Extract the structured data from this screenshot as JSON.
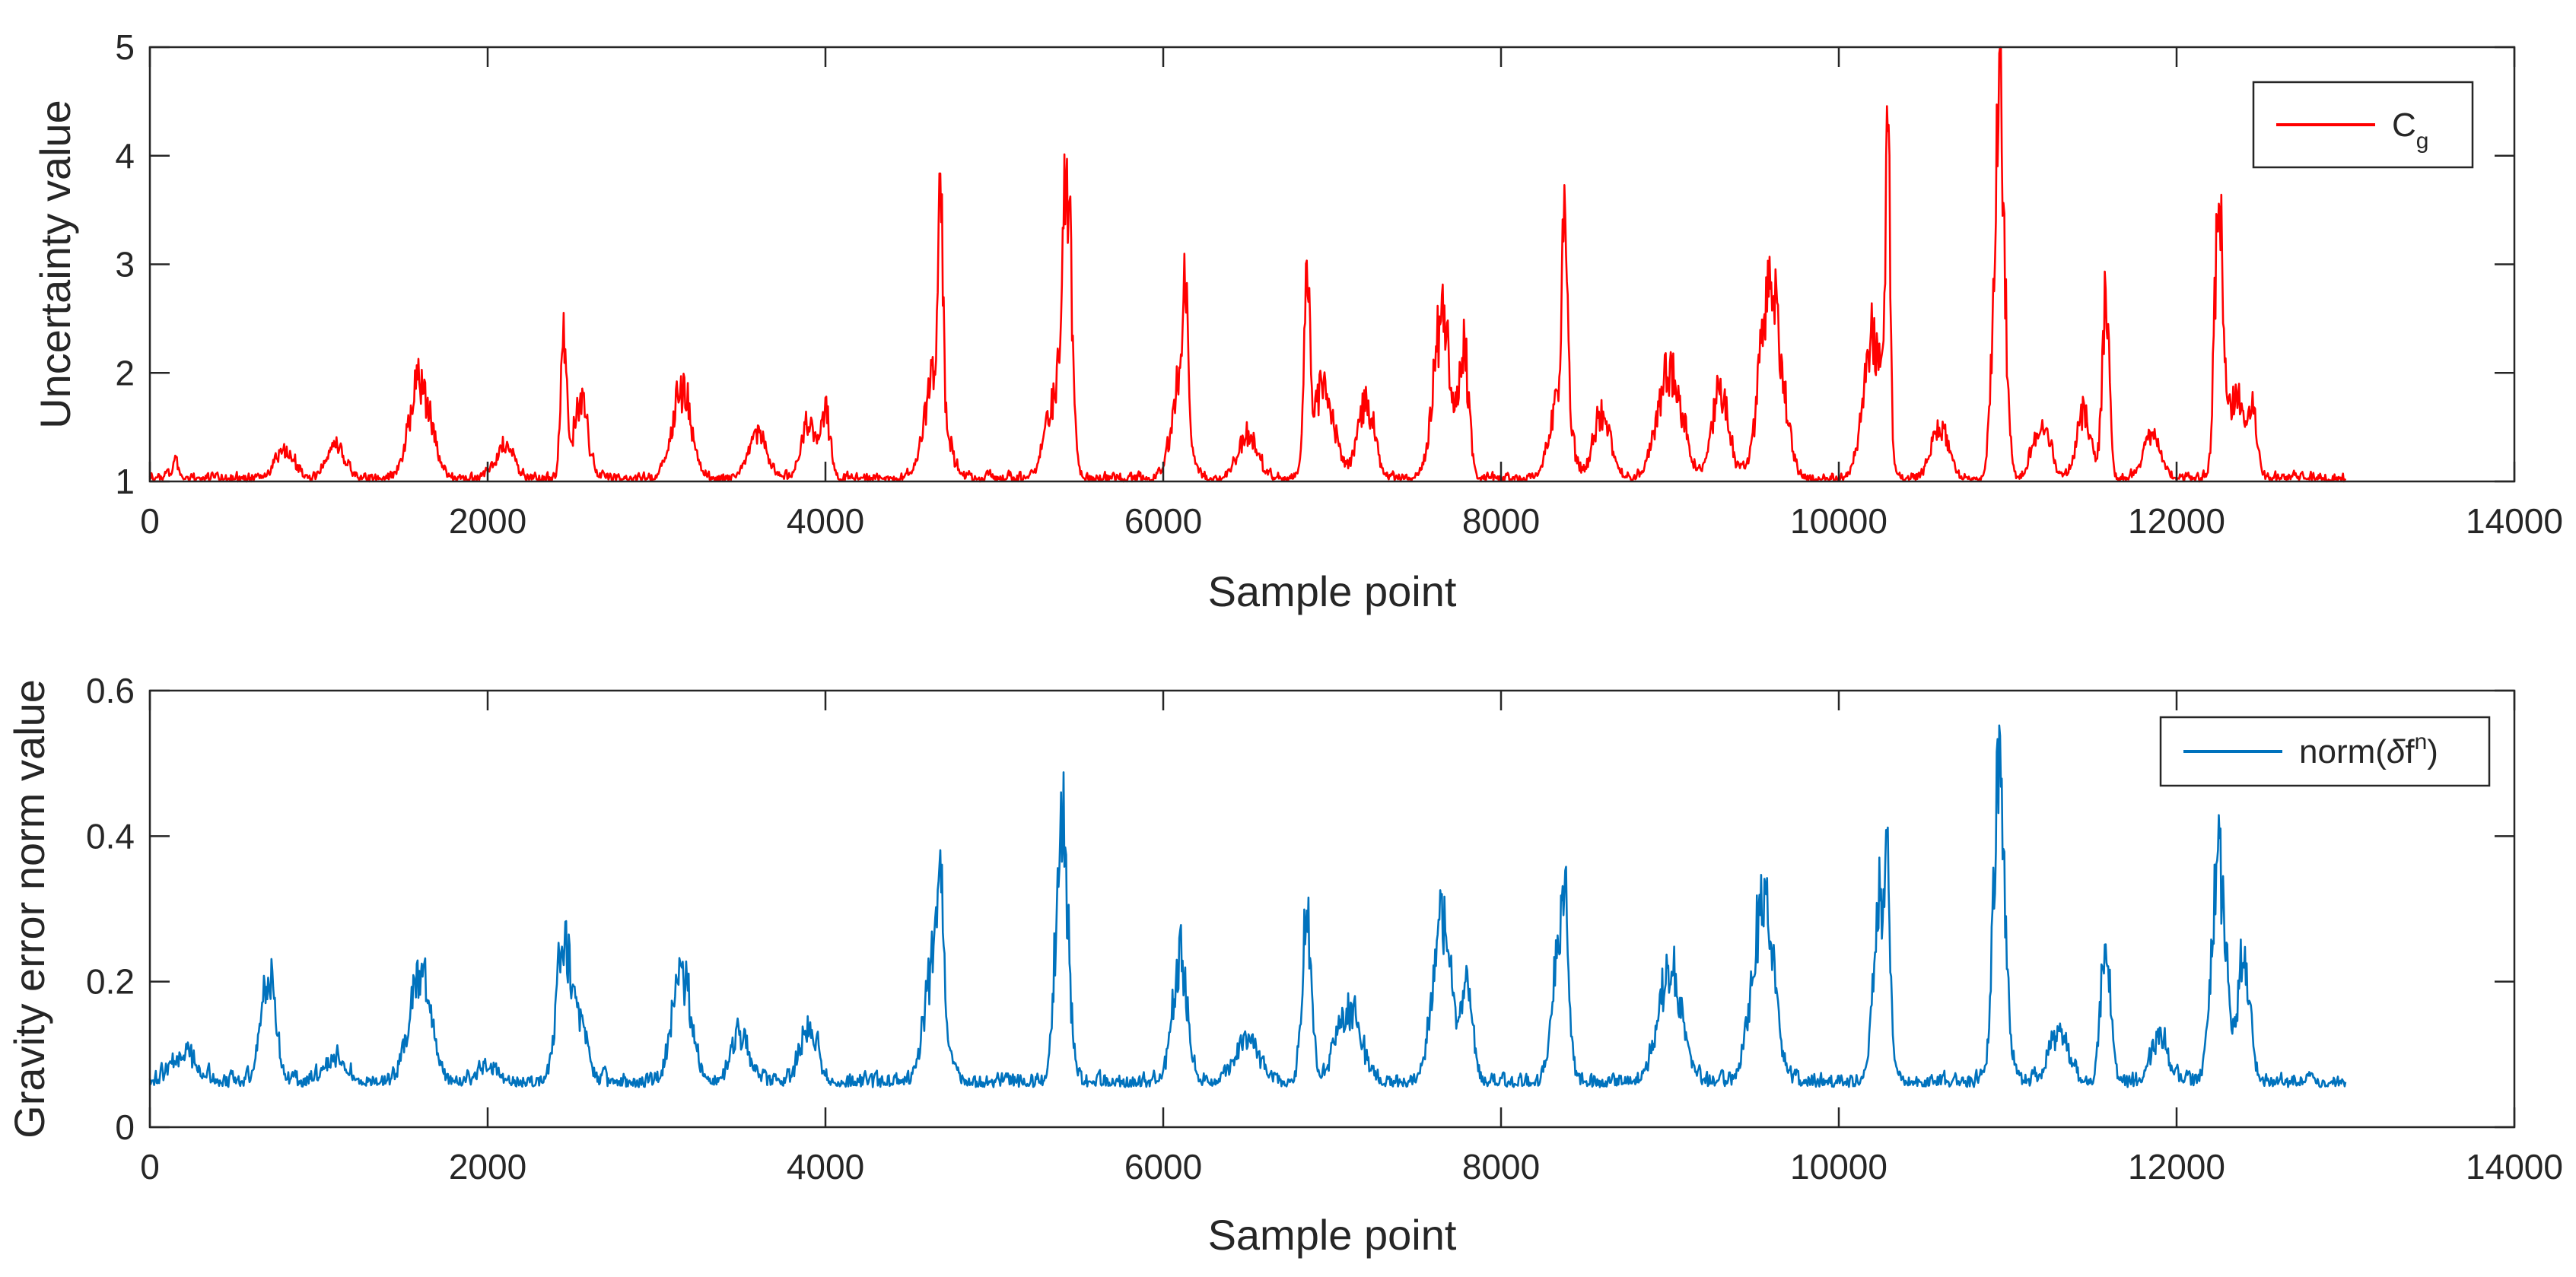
{
  "chart_data": [
    {
      "type": "line",
      "title": "",
      "xlabel": "Sample point",
      "ylabel": "Uncertainty value",
      "xlim": [
        0,
        14000
      ],
      "ylim": [
        1,
        5
      ],
      "xticks": [
        "0",
        "2000",
        "4000",
        "6000",
        "8000",
        "10000",
        "12000",
        "14000"
      ],
      "yticks": [
        "1",
        "2",
        "3",
        "4",
        "5"
      ],
      "legend": {
        "position": "top-right",
        "main": "C",
        "sub": "g"
      },
      "grid": false,
      "series": [
        {
          "name": "Cg",
          "color": "#ff0000",
          "baseline": 1.0,
          "noise": 0.12,
          "x_range": [
            0,
            13000
          ],
          "features": [
            {
              "x": 150,
              "h": 0.18,
              "w": 25
            },
            {
              "x": 800,
              "h": 0.25,
              "w": 80
            },
            {
              "x": 1100,
              "h": 0.3,
              "w": 70
            },
            {
              "x": 1600,
              "h": 0.9,
              "w": 90
            },
            {
              "x": 2100,
              "h": 0.3,
              "w": 70
            },
            {
              "x": 2450,
              "h": 1.3,
              "w": 25
            },
            {
              "x": 2550,
              "h": 0.7,
              "w": 60
            },
            {
              "x": 3150,
              "h": 0.8,
              "w": 80
            },
            {
              "x": 3600,
              "h": 0.4,
              "w": 80
            },
            {
              "x": 3900,
              "h": 0.5,
              "w": 60
            },
            {
              "x": 4000,
              "h": 0.6,
              "w": 40
            },
            {
              "x": 4650,
              "h": 0.9,
              "w": 90
            },
            {
              "x": 4680,
              "h": 1.9,
              "w": 20
            },
            {
              "x": 5350,
              "h": 0.7,
              "w": 70
            },
            {
              "x": 5430,
              "h": 2.6,
              "w": 40
            },
            {
              "x": 6100,
              "h": 0.9,
              "w": 70
            },
            {
              "x": 6130,
              "h": 1.1,
              "w": 20
            },
            {
              "x": 6500,
              "h": 0.4,
              "w": 80
            },
            {
              "x": 6850,
              "h": 1.7,
              "w": 25
            },
            {
              "x": 6950,
              "h": 0.8,
              "w": 90
            },
            {
              "x": 7200,
              "h": 0.7,
              "w": 70
            },
            {
              "x": 7650,
              "h": 1.5,
              "w": 70
            },
            {
              "x": 7780,
              "h": 1.2,
              "w": 40
            },
            {
              "x": 8350,
              "h": 0.8,
              "w": 80
            },
            {
              "x": 8380,
              "h": 2.1,
              "w": 20
            },
            {
              "x": 8600,
              "h": 0.6,
              "w": 70
            },
            {
              "x": 9000,
              "h": 1.0,
              "w": 100
            },
            {
              "x": 9300,
              "h": 0.8,
              "w": 70
            },
            {
              "x": 9600,
              "h": 1.8,
              "w": 90
            },
            {
              "x": 10200,
              "h": 1.3,
              "w": 80
            },
            {
              "x": 10290,
              "h": 2.8,
              "w": 20
            },
            {
              "x": 10600,
              "h": 0.5,
              "w": 70
            },
            {
              "x": 10950,
              "h": 3.4,
              "w": 45
            },
            {
              "x": 11200,
              "h": 0.5,
              "w": 70
            },
            {
              "x": 11450,
              "h": 0.6,
              "w": 60
            },
            {
              "x": 11580,
              "h": 1.6,
              "w": 30
            },
            {
              "x": 11850,
              "h": 0.4,
              "w": 70
            },
            {
              "x": 12250,
              "h": 2.6,
              "w": 35
            },
            {
              "x": 12350,
              "h": 0.8,
              "w": 60
            },
            {
              "x": 12450,
              "h": 0.6,
              "w": 40
            }
          ]
        }
      ]
    },
    {
      "type": "line",
      "title": "",
      "xlabel": "Sample point",
      "ylabel": "Gravity error norm value",
      "xlim": [
        0,
        14000
      ],
      "ylim": [
        0,
        0.6
      ],
      "xticks": [
        "0",
        "2000",
        "4000",
        "6000",
        "8000",
        "10000",
        "12000",
        "14000"
      ],
      "yticks": [
        "0",
        "0.2",
        "0.4",
        "0.6"
      ],
      "legend": {
        "position": "top-right",
        "prefix": "norm(",
        "greek": "δ",
        "main": "f",
        "sup": "n",
        "suffix": ")"
      },
      "grid": false,
      "series": [
        {
          "name": "norm(δf^n)",
          "color": "#0072bd",
          "baseline": 0.055,
          "noise": 0.028,
          "x_range": [
            0,
            13000
          ],
          "features": [
            {
              "x": 200,
              "h": 0.04,
              "w": 100
            },
            {
              "x": 700,
              "h": 0.15,
              "w": 60
            },
            {
              "x": 1100,
              "h": 0.03,
              "w": 100
            },
            {
              "x": 1600,
              "h": 0.15,
              "w": 90
            },
            {
              "x": 2000,
              "h": 0.02,
              "w": 80
            },
            {
              "x": 2450,
              "h": 0.19,
              "w": 60
            },
            {
              "x": 2550,
              "h": 0.08,
              "w": 60
            },
            {
              "x": 3150,
              "h": 0.15,
              "w": 80
            },
            {
              "x": 3500,
              "h": 0.06,
              "w": 80
            },
            {
              "x": 3900,
              "h": 0.08,
              "w": 70
            },
            {
              "x": 4650,
              "h": 0.18,
              "w": 80
            },
            {
              "x": 4680,
              "h": 0.15,
              "w": 20
            },
            {
              "x": 5400,
              "h": 0.37,
              "w": 50
            },
            {
              "x": 6100,
              "h": 0.17,
              "w": 60
            },
            {
              "x": 6500,
              "h": 0.06,
              "w": 100
            },
            {
              "x": 6850,
              "h": 0.22,
              "w": 40
            },
            {
              "x": 7100,
              "h": 0.1,
              "w": 100
            },
            {
              "x": 7650,
              "h": 0.22,
              "w": 80
            },
            {
              "x": 7800,
              "h": 0.12,
              "w": 50
            },
            {
              "x": 8350,
              "h": 0.2,
              "w": 60
            },
            {
              "x": 8380,
              "h": 0.12,
              "w": 20
            },
            {
              "x": 9000,
              "h": 0.15,
              "w": 100
            },
            {
              "x": 9550,
              "h": 0.25,
              "w": 90
            },
            {
              "x": 10250,
              "h": 0.24,
              "w": 60
            },
            {
              "x": 10290,
              "h": 0.14,
              "w": 20
            },
            {
              "x": 10950,
              "h": 0.4,
              "w": 50
            },
            {
              "x": 11300,
              "h": 0.07,
              "w": 80
            },
            {
              "x": 11580,
              "h": 0.2,
              "w": 40
            },
            {
              "x": 11900,
              "h": 0.06,
              "w": 70
            },
            {
              "x": 12250,
              "h": 0.3,
              "w": 60
            },
            {
              "x": 12400,
              "h": 0.18,
              "w": 50
            }
          ]
        }
      ]
    }
  ]
}
